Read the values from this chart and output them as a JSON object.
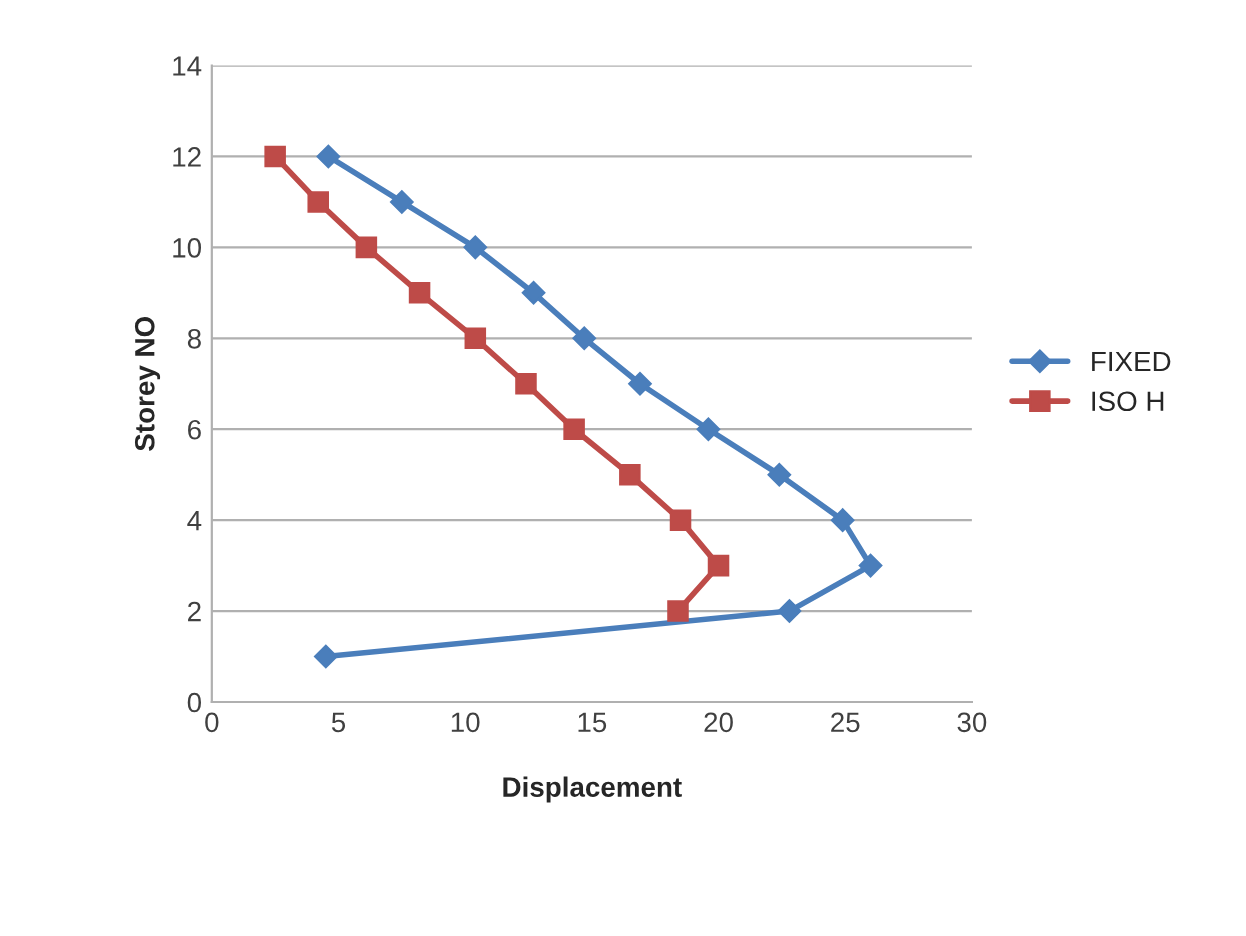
{
  "chart_data": {
    "type": "line",
    "xlabel": "Displacement",
    "ylabel": "Storey NO",
    "xlim": [
      0,
      30
    ],
    "xticks": [
      0,
      5,
      10,
      15,
      20,
      25,
      30
    ],
    "ylim": [
      0,
      14
    ],
    "yticks": [
      0,
      2,
      4,
      6,
      8,
      10,
      12,
      14
    ],
    "grid": "y",
    "legend": "right",
    "series": [
      {
        "name": "FIXED",
        "color": "#4a7ebb",
        "marker": "diamond",
        "x": [
          4.5,
          22.8,
          26.0,
          24.9,
          22.4,
          19.6,
          16.9,
          14.7,
          12.7,
          10.4,
          7.5,
          4.6
        ],
        "values": [
          1,
          2,
          3,
          4,
          5,
          6,
          7,
          8,
          9,
          10,
          11,
          12
        ]
      },
      {
        "name": "ISO H",
        "color": "#be4b48",
        "marker": "square",
        "x": [
          18.4,
          20.0,
          18.5,
          16.5,
          14.3,
          12.4,
          10.4,
          8.2,
          6.1,
          4.2,
          2.5
        ],
        "values": [
          2,
          3,
          4,
          5,
          6,
          7,
          8,
          9,
          10,
          11,
          12
        ]
      }
    ]
  }
}
